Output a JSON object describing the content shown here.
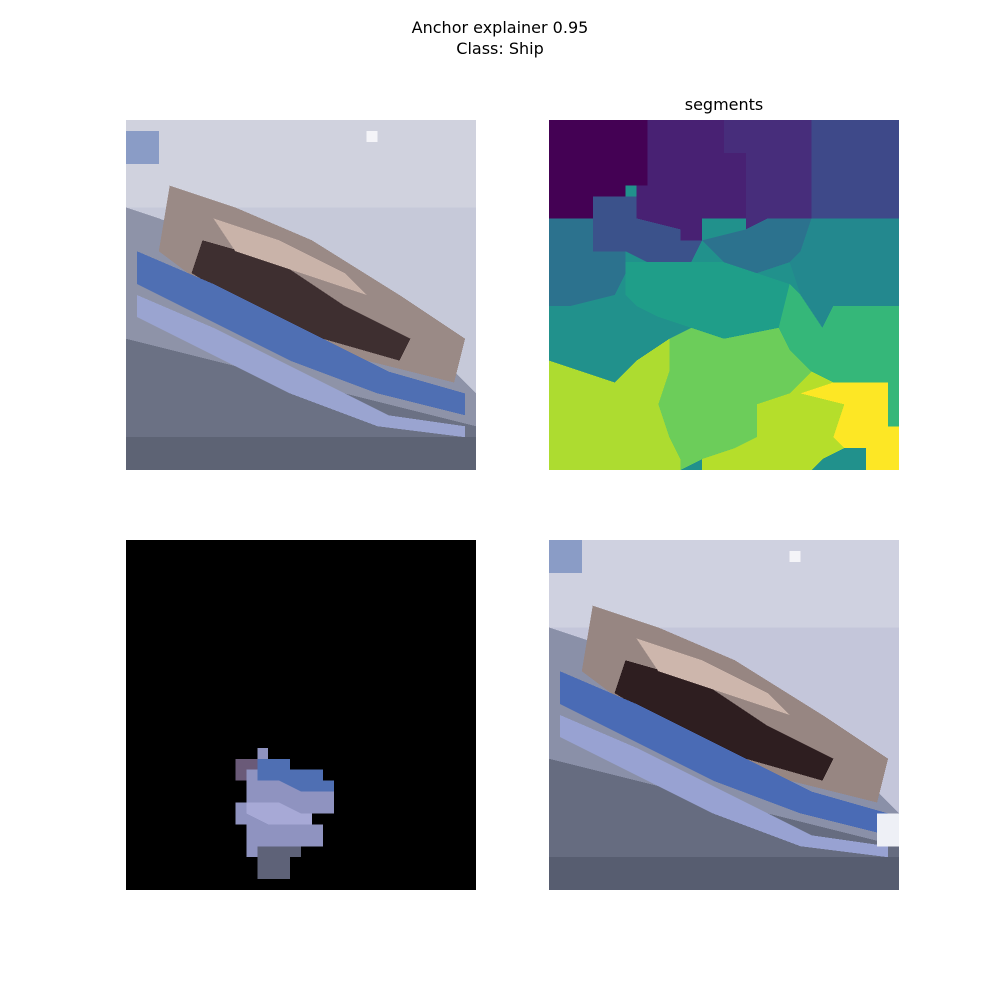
{
  "figure": {
    "title_line1": "Anchor explainer 0.95",
    "title_line2": "Class: Ship"
  },
  "panels": {
    "original": {
      "title": ""
    },
    "segments": {
      "title": "segments"
    },
    "anchor": {
      "title": ""
    },
    "perturbed": {
      "title": ""
    }
  },
  "colors": {
    "sky": "#c4c8d8",
    "sky_light": "#d2d4e0",
    "hull_blue": "#4f6fb3",
    "hull_dark": "#3b2a2a",
    "deck_brown": "#8a6e62",
    "water": "#6d7488",
    "water_dark": "#4a5064",
    "seg_purple_dark": "#440154",
    "seg_purple": "#472d7b",
    "seg_indigo": "#3b528b",
    "seg_blue": "#2c728e",
    "seg_teal": "#21918c",
    "seg_green_teal": "#28ae80",
    "seg_green": "#5ec962",
    "seg_lime": "#addc30",
    "seg_yellow": "#fde725",
    "mask_black": "#000000"
  }
}
